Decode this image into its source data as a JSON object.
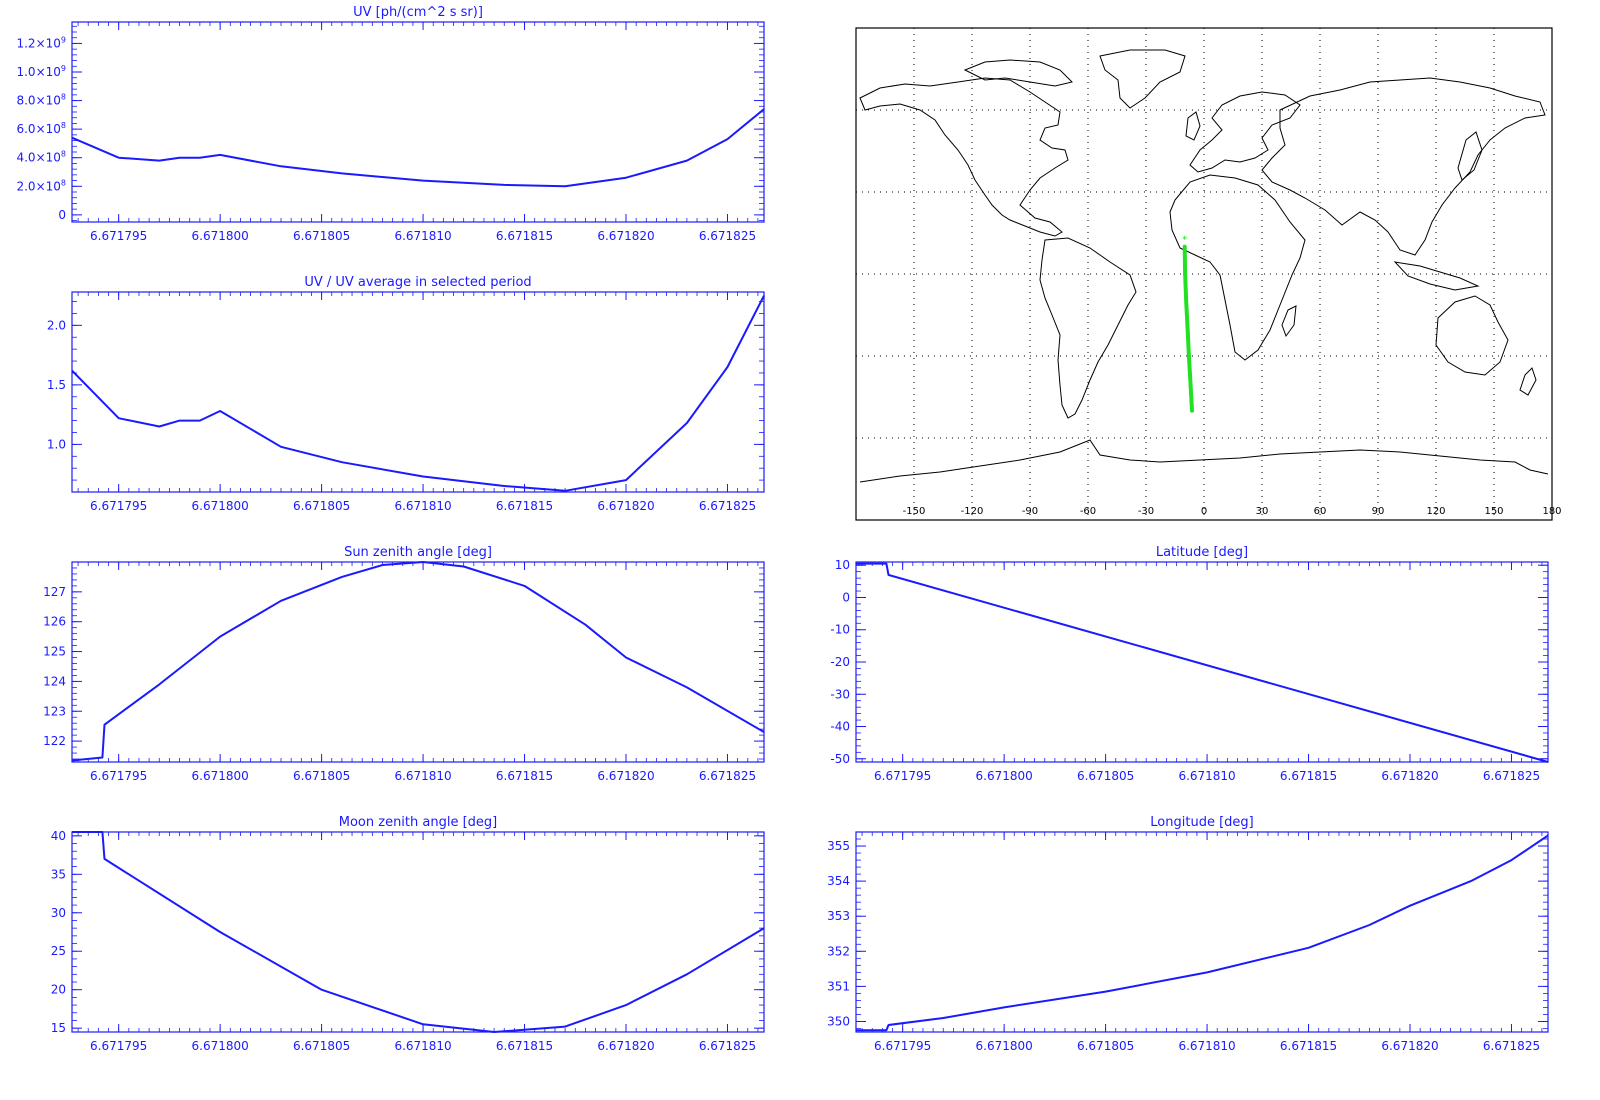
{
  "colors": {
    "plot": "#1a1aff",
    "map": "#000000",
    "track": "#22e022",
    "background": "#ffffff"
  },
  "map": {
    "lon_ticks": [
      "-150",
      "-120",
      "-90",
      "-60",
      "-30",
      "0",
      "30",
      "60",
      "90",
      "120",
      "150",
      "180"
    ],
    "lon_values": [
      -150,
      -120,
      -90,
      -60,
      -30,
      0,
      30,
      60,
      90,
      120,
      150,
      180
    ],
    "lat_grid": [
      -60,
      -30,
      0,
      30,
      60
    ],
    "track": {
      "lon": [
        -10,
        -9.8,
        -9.2,
        -8.5,
        -7.8,
        -7.0,
        -6.2
      ],
      "lat": [
        10,
        0,
        -10,
        -20,
        -30,
        -40,
        -50
      ]
    }
  },
  "chart_data": [
    {
      "id": "uv",
      "type": "line",
      "title": "UV [ph/(cm^2 s sr)]",
      "xlim": [
        6.6717927,
        6.6718268
      ],
      "ylim": [
        -50000000,
        1350000000
      ],
      "x_ticks": [
        6.671795,
        6.6718,
        6.671805,
        6.67181,
        6.671815,
        6.67182,
        6.671825
      ],
      "x_tick_labels": [
        "6.671795",
        "6.671800",
        "6.671805",
        "6.671810",
        "6.671815",
        "6.671820",
        "6.671825"
      ],
      "y_ticks": [
        0,
        200000000,
        400000000,
        600000000,
        800000000,
        1000000000,
        1200000000
      ],
      "y_tick_labels": [
        {
          "mantissa": "0",
          "exp": ""
        },
        {
          "mantissa": "2.0×10",
          "exp": "8"
        },
        {
          "mantissa": "4.0×10",
          "exp": "8"
        },
        {
          "mantissa": "6.0×10",
          "exp": "8"
        },
        {
          "mantissa": "8.0×10",
          "exp": "8"
        },
        {
          "mantissa": "1.0×10",
          "exp": "9"
        },
        {
          "mantissa": "1.2×10",
          "exp": "9"
        }
      ],
      "series": [
        {
          "x": [
            6.6717927,
            6.671795,
            6.671797,
            6.671798,
            6.671799,
            6.6718,
            6.671803,
            6.671806,
            6.67181,
            6.671814,
            6.671817,
            6.67182,
            6.671823,
            6.671825,
            6.6718268
          ],
          "y": [
            540000000,
            400000000,
            380000000,
            400000000,
            400000000,
            420000000,
            340000000,
            290000000,
            240000000,
            210000000,
            200000000,
            260000000,
            380000000,
            530000000,
            740000000
          ]
        }
      ]
    },
    {
      "id": "uvratio",
      "type": "line",
      "title": "UV / UV average in selected period",
      "xlim": [
        6.6717927,
        6.6718268
      ],
      "ylim": [
        0.6,
        2.28
      ],
      "x_ticks": [
        6.671795,
        6.6718,
        6.671805,
        6.67181,
        6.671815,
        6.67182,
        6.671825
      ],
      "x_tick_labels": [
        "6.671795",
        "6.671800",
        "6.671805",
        "6.671810",
        "6.671815",
        "6.671820",
        "6.671825"
      ],
      "y_ticks": [
        1.0,
        1.5,
        2.0
      ],
      "y_tick_labels": [
        "1.0",
        "1.5",
        "2.0"
      ],
      "series": [
        {
          "x": [
            6.6717927,
            6.671795,
            6.671797,
            6.671798,
            6.671799,
            6.6718,
            6.671803,
            6.671806,
            6.67181,
            6.671814,
            6.671817,
            6.67182,
            6.671823,
            6.671825,
            6.6718268
          ],
          "y": [
            1.62,
            1.22,
            1.15,
            1.2,
            1.2,
            1.28,
            0.98,
            0.85,
            0.73,
            0.65,
            0.61,
            0.7,
            1.18,
            1.65,
            2.25
          ]
        }
      ]
    },
    {
      "id": "sza",
      "type": "line",
      "title": "Sun zenith angle [deg]",
      "xlim": [
        6.6717927,
        6.6718268
      ],
      "ylim": [
        121.3,
        128.0
      ],
      "x_ticks": [
        6.671795,
        6.6718,
        6.671805,
        6.67181,
        6.671815,
        6.67182,
        6.671825
      ],
      "x_tick_labels": [
        "6.671795",
        "6.671800",
        "6.671805",
        "6.671810",
        "6.671815",
        "6.671820",
        "6.671825"
      ],
      "y_ticks": [
        122,
        123,
        124,
        125,
        126,
        127
      ],
      "y_tick_labels": [
        "122",
        "123",
        "124",
        "125",
        "126",
        "127"
      ],
      "series": [
        {
          "x": [
            6.6717927,
            6.6717942,
            6.6717943,
            6.671797,
            6.6718,
            6.671803,
            6.671806,
            6.671808,
            6.67181,
            6.671812,
            6.671815,
            6.671818,
            6.67182,
            6.671823,
            6.6718268
          ],
          "y": [
            121.35,
            121.45,
            122.55,
            123.9,
            125.5,
            126.7,
            127.5,
            127.9,
            128.0,
            127.85,
            127.2,
            125.9,
            124.8,
            123.8,
            122.3
          ]
        }
      ]
    },
    {
      "id": "lat",
      "type": "line",
      "title": "Latitude [deg]",
      "xlim": [
        6.6717927,
        6.6718268
      ],
      "ylim": [
        -51,
        11
      ],
      "x_ticks": [
        6.671795,
        6.6718,
        6.671805,
        6.67181,
        6.671815,
        6.67182,
        6.671825
      ],
      "x_tick_labels": [
        "6.671795",
        "6.671800",
        "6.671805",
        "6.671810",
        "6.671815",
        "6.671820",
        "6.671825"
      ],
      "y_ticks": [
        -50,
        -40,
        -30,
        -20,
        -10,
        0,
        10
      ],
      "y_tick_labels": [
        "-50",
        "-40",
        "-30",
        "-20",
        "-10",
        "0",
        "10"
      ],
      "series": [
        {
          "x": [
            6.6717927,
            6.6717942,
            6.6717943,
            6.6718268
          ],
          "y": [
            10.5,
            10.5,
            7,
            -51
          ]
        }
      ]
    },
    {
      "id": "mza",
      "type": "line",
      "title": "Moon zenith angle [deg]",
      "xlim": [
        6.6717927,
        6.6718268
      ],
      "ylim": [
        14.5,
        40.5
      ],
      "x_ticks": [
        6.671795,
        6.6718,
        6.671805,
        6.67181,
        6.671815,
        6.67182,
        6.671825
      ],
      "x_tick_labels": [
        "6.671795",
        "6.671800",
        "6.671805",
        "6.671810",
        "6.671815",
        "6.671820",
        "6.671825"
      ],
      "y_ticks": [
        15,
        20,
        25,
        30,
        35,
        40
      ],
      "y_tick_labels": [
        "15",
        "20",
        "25",
        "30",
        "35",
        "40"
      ],
      "series": [
        {
          "x": [
            6.6717927,
            6.6717942,
            6.6717943,
            6.6718,
            6.671805,
            6.67181,
            6.6718135,
            6.671817,
            6.67182,
            6.671823,
            6.6718268
          ],
          "y": [
            40.5,
            40.5,
            37,
            27.5,
            20,
            15.5,
            14.5,
            15.2,
            18,
            22,
            28
          ]
        }
      ]
    },
    {
      "id": "lon",
      "type": "line",
      "title": "Longitude [deg]",
      "xlim": [
        6.6717927,
        6.6718268
      ],
      "ylim": [
        349.7,
        355.4
      ],
      "x_ticks": [
        6.671795,
        6.6718,
        6.671805,
        6.67181,
        6.671815,
        6.67182,
        6.671825
      ],
      "x_tick_labels": [
        "6.671795",
        "6.671800",
        "6.671805",
        "6.671810",
        "6.671815",
        "6.671820",
        "6.671825"
      ],
      "y_ticks": [
        350,
        351,
        352,
        353,
        354,
        355
      ],
      "y_tick_labels": [
        "350",
        "351",
        "352",
        "353",
        "354",
        "355"
      ],
      "series": [
        {
          "x": [
            6.6717927,
            6.6717942,
            6.6717943,
            6.671797,
            6.6718,
            6.671805,
            6.67181,
            6.671815,
            6.671818,
            6.67182,
            6.671823,
            6.671825,
            6.6718268
          ],
          "y": [
            349.75,
            349.75,
            349.9,
            350.1,
            350.4,
            350.85,
            351.4,
            352.1,
            352.75,
            353.3,
            354.0,
            354.6,
            355.3
          ]
        }
      ]
    }
  ]
}
